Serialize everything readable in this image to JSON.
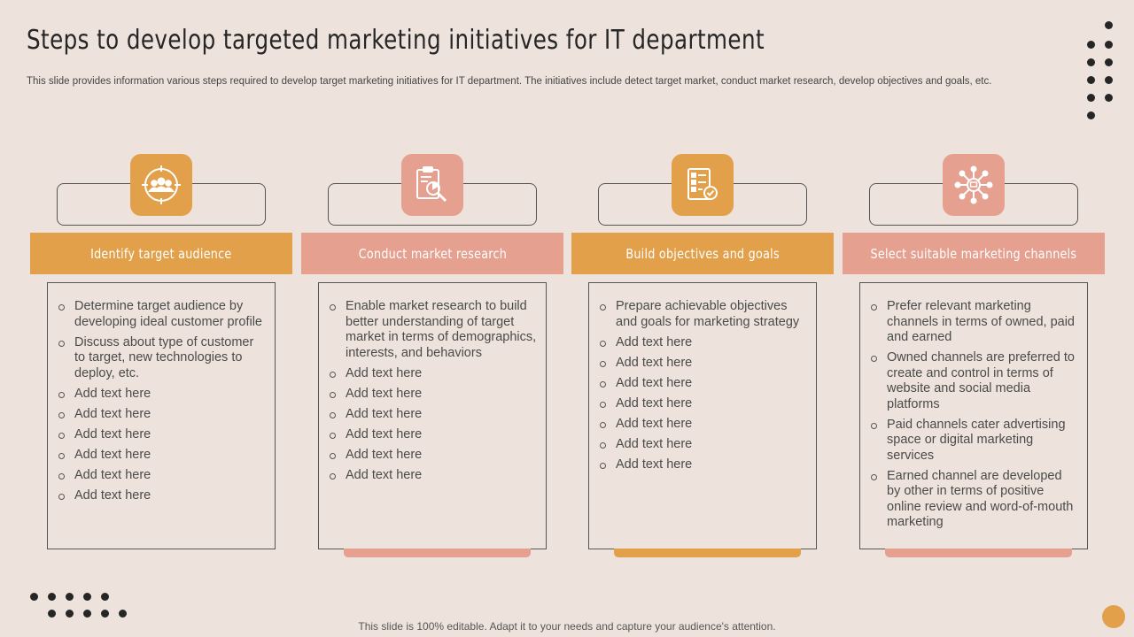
{
  "header": {
    "title": "Steps to develop targeted marketing initiatives for IT department",
    "subtitle": "This slide provides information various steps required to develop target marketing initiatives for IT  department. The initiatives include detect target market, conduct market research, develop objectives and goals, etc."
  },
  "colors": {
    "orange": "#e3a04a",
    "salmon": "#e5a090",
    "background": "#ede3dc"
  },
  "steps": [
    {
      "icon": "target-audience-icon",
      "title": "Identify target audience",
      "items": [
        "Determine target audience by developing ideal customer profile",
        "Discuss about type of customer to target, new technologies to deploy, etc.",
        "Add text here",
        "Add text here",
        "Add text here",
        "Add text here",
        "Add text here",
        "Add text here"
      ]
    },
    {
      "icon": "market-research-icon",
      "title": "Conduct market research",
      "items": [
        "Enable market research to build better understanding of target market in terms of demographics, interests, and behaviors",
        "Add text here",
        "Add text here",
        "Add text here",
        "Add text here",
        "Add text here",
        "Add text here"
      ]
    },
    {
      "icon": "objectives-checklist-icon",
      "title": "Build objectives and goals",
      "items": [
        "Prepare achievable objectives and goals for marketing strategy",
        "Add text here",
        "Add text here",
        "Add text here",
        "Add text here",
        "Add text here",
        "Add text here",
        "Add text here"
      ]
    },
    {
      "icon": "marketing-channels-network-icon",
      "title": "Select suitable marketing channels",
      "items": [
        "Prefer relevant marketing channels in terms of owned, paid and earned",
        "Owned channels are preferred to create and control in terms of website and social media platforms",
        "Paid channels cater advertising space or digital marketing services",
        "Earned channel are developed by other in terms of positive online review and word-of-mouth marketing"
      ]
    }
  ],
  "footer": {
    "text": "This slide is 100% editable. Adapt it to your needs and capture your audience's attention."
  }
}
